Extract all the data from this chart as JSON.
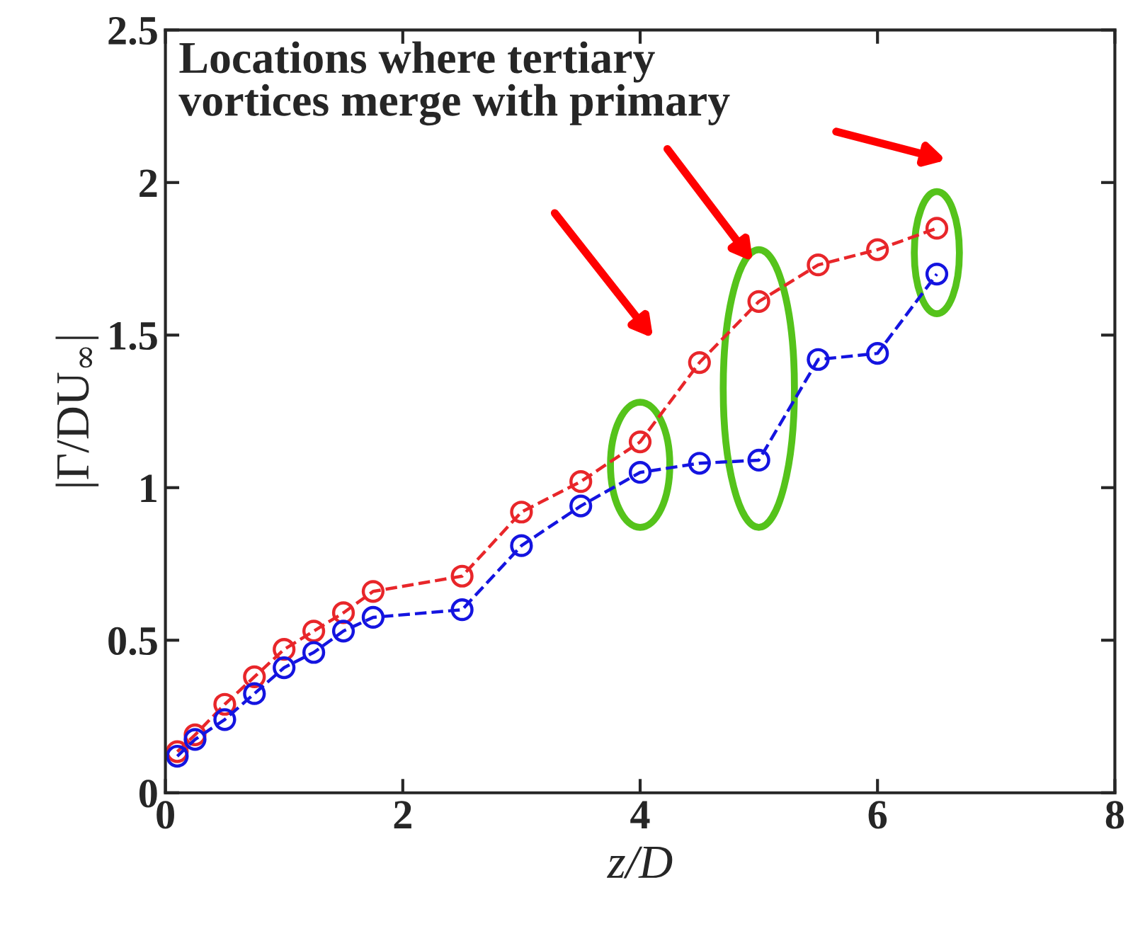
{
  "chart_data": {
    "type": "line",
    "xlabel": "z/D",
    "ylabel": "|Γ/DU$_{∞}$|",
    "x": [
      0.1,
      0.25,
      0.5,
      0.75,
      1,
      1.25,
      1.5,
      1.75,
      2.5,
      3,
      3.5,
      4,
      4.5,
      5,
      5.5,
      6,
      6.5
    ],
    "series": [
      {
        "color": "#e8262a",
        "values": [
          0.135,
          0.19,
          0.29,
          0.38,
          0.47,
          0.53,
          0.59,
          0.66,
          0.71,
          0.92,
          1.02,
          1.15,
          1.41,
          1.61,
          1.73,
          1.78,
          1.85
        ]
      },
      {
        "color": "#1414e0",
        "values": [
          0.12,
          0.175,
          0.24,
          0.325,
          0.41,
          0.46,
          0.53,
          0.575,
          0.6,
          0.81,
          0.94,
          1.05,
          1.08,
          1.09,
          1.42,
          1.44,
          1.7
        ]
      }
    ],
    "marker": "circle",
    "line_style": "dashed",
    "xlim": [
      0,
      8
    ],
    "xticks": [
      0,
      2,
      4,
      6,
      8
    ],
    "ylim": [
      0,
      2.5
    ],
    "yticks": [
      0,
      0.5,
      1,
      1.5,
      2,
      2.5
    ],
    "grid": false,
    "annotations": [
      "Locations where tertiary\nvortices merge with primary"
    ]
  }
}
